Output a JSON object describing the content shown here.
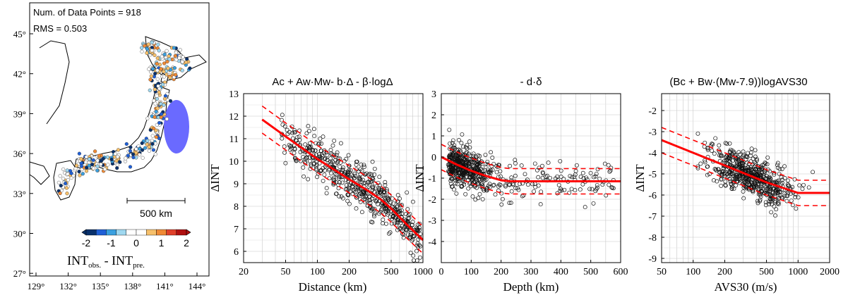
{
  "map": {
    "annotation_points": "Num. of Data Points = 918",
    "annotation_rms": "RMS = 0.503",
    "lat_ticks": [
      "45°",
      "42°",
      "39°",
      "36°",
      "33°",
      "30°",
      "27°"
    ],
    "lon_ticks": [
      "129°",
      "132°",
      "135°",
      "138°",
      "141°",
      "144°"
    ],
    "scale_label": "500 km",
    "colorbar_ticks": [
      "-2",
      "-1",
      "0",
      "1",
      "2"
    ],
    "colorbar_colors": [
      "#08306b",
      "#1f5fd6",
      "#3aa0e0",
      "#9fd8f0",
      "#ffffff",
      "#ffffff",
      "#f6c06b",
      "#f08a35",
      "#e0402a",
      "#b01010"
    ],
    "colorbar_label": {
      "main1": "INT",
      "sub1": "obs.",
      "mid": " - INT",
      "sub2": "pre."
    },
    "land_color": "#ffffff",
    "region_color": "#6a6aff"
  },
  "panels": {
    "p1": {
      "title": "Ac + Aw·Mw- b·Δ - β·logΔ",
      "xlabel": "Distance (km)",
      "ylabel": "ΔINT",
      "xticks": [
        "20",
        "50",
        "100",
        "200",
        "500",
        "1000"
      ],
      "yticks": [
        "6",
        "7",
        "8",
        "9",
        "10",
        "11",
        "12",
        "13"
      ]
    },
    "p2": {
      "title": "- d·δ",
      "xlabel": "Depth (km)",
      "ylabel": "ΔINT",
      "xticks": [
        "0",
        "100",
        "200",
        "300",
        "400",
        "500",
        "600"
      ],
      "yticks": [
        "-4",
        "-3",
        "-2",
        "-1",
        "0",
        "1",
        "2",
        "3"
      ]
    },
    "p3": {
      "title": "(Bc + Bw·(Mw-7.9))logAVS30",
      "xlabel": "AVS30 (m/s)",
      "ylabel": "ΔINT",
      "xticks": [
        "50",
        "100",
        "200",
        "500",
        "1000",
        "2000"
      ],
      "yticks": [
        "-9",
        "-8",
        "-7",
        "-6",
        "-5",
        "-4",
        "-3",
        "-2"
      ]
    }
  },
  "chart_data": [
    {
      "type": "scatter",
      "title": "Ac + Aw·Mw- b·Δ - β·logΔ",
      "xlabel": "Distance (km)",
      "ylabel": "ΔINT",
      "xscale": "log",
      "xlim": [
        20,
        1000
      ],
      "ylim": [
        5.5,
        13
      ],
      "grid": true,
      "num_points": 918,
      "scatter_summary": {
        "x_range": [
          40,
          950
        ],
        "marker": "open circle",
        "color": "#000000"
      },
      "series": [
        {
          "style": "solid",
          "color": "#ff0000",
          "x": [
            30,
            50,
            100,
            200,
            300,
            400,
            500,
            700,
            1000
          ],
          "y": [
            11.85,
            11.1,
            10.1,
            9.2,
            8.7,
            8.3,
            7.9,
            7.2,
            6.5
          ]
        },
        {
          "style": "dashed",
          "color": "#ff0000",
          "x": [
            30,
            50,
            100,
            200,
            300,
            400,
            500,
            700,
            1000
          ],
          "y": [
            12.45,
            11.7,
            10.7,
            9.8,
            9.3,
            8.9,
            8.5,
            7.8,
            7.1
          ]
        },
        {
          "style": "dashed",
          "color": "#ff0000",
          "x": [
            30,
            50,
            100,
            200,
            300,
            400,
            500,
            700,
            1000
          ],
          "y": [
            11.25,
            10.5,
            9.5,
            8.6,
            8.1,
            7.7,
            7.3,
            6.6,
            5.9
          ]
        }
      ]
    },
    {
      "type": "scatter",
      "title": "- d·δ",
      "xlabel": "Depth (km)",
      "ylabel": "ΔINT",
      "xlim": [
        0,
        600
      ],
      "ylim": [
        -5,
        3
      ],
      "grid": true,
      "num_points": 918,
      "scatter_summary": {
        "x_range": [
          20,
          580
        ],
        "marker": "open circle",
        "color": "#000000"
      },
      "series": [
        {
          "style": "solid",
          "color": "#ff0000",
          "x": [
            0,
            50,
            100,
            150,
            200,
            230,
            600
          ],
          "y": [
            0.0,
            -0.35,
            -0.65,
            -0.9,
            -1.1,
            -1.15,
            -1.15
          ]
        },
        {
          "style": "dashed",
          "color": "#ff0000",
          "x": [
            0,
            50,
            100,
            150,
            200,
            230,
            600
          ],
          "y": [
            0.6,
            0.25,
            -0.05,
            -0.3,
            -0.5,
            -0.55,
            -0.55
          ]
        },
        {
          "style": "dashed",
          "color": "#ff0000",
          "x": [
            0,
            50,
            100,
            150,
            200,
            230,
            600
          ],
          "y": [
            -0.6,
            -0.95,
            -1.25,
            -1.5,
            -1.7,
            -1.75,
            -1.75
          ]
        }
      ]
    },
    {
      "type": "scatter",
      "title": "(Bc + Bw·(Mw-7.9))logAVS30",
      "xlabel": "AVS30 (m/s)",
      "ylabel": "ΔINT",
      "xscale": "log",
      "xlim": [
        50,
        2000
      ],
      "ylim": [
        -9.2,
        -1.2
      ],
      "grid": true,
      "num_points": 918,
      "scatter_summary": {
        "x_range": [
          100,
          1500
        ],
        "marker": "open circle",
        "color": "#000000"
      },
      "series": [
        {
          "style": "solid",
          "color": "#ff0000",
          "x": [
            50,
            100,
            200,
            500,
            1000,
            1200,
            2000
          ],
          "y": [
            -3.4,
            -4.0,
            -4.6,
            -5.4,
            -5.9,
            -5.9,
            -5.9
          ]
        },
        {
          "style": "dashed",
          "color": "#ff0000",
          "x": [
            50,
            100,
            200,
            500,
            1000,
            1200,
            2000
          ],
          "y": [
            -2.8,
            -3.4,
            -4.0,
            -4.8,
            -5.3,
            -5.3,
            -5.3
          ]
        },
        {
          "style": "dashed",
          "color": "#ff0000",
          "x": [
            50,
            100,
            200,
            500,
            1000,
            1200,
            2000
          ],
          "y": [
            -4.0,
            -4.6,
            -5.2,
            -6.0,
            -6.5,
            -6.5,
            -6.5
          ]
        }
      ]
    }
  ]
}
